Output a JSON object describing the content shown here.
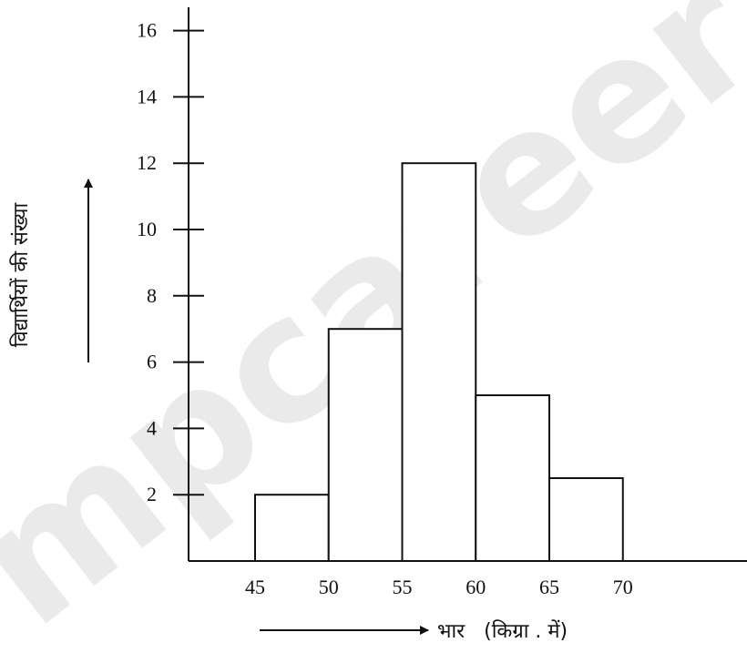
{
  "watermark_text": "mpcareer",
  "chart_data": {
    "type": "histogram",
    "bins": [
      [
        45,
        50
      ],
      [
        50,
        55
      ],
      [
        55,
        60
      ],
      [
        60,
        65
      ],
      [
        65,
        70
      ]
    ],
    "values": [
      2,
      7,
      12,
      5,
      2.5
    ],
    "xticks": [
      45,
      50,
      55,
      60,
      65,
      70
    ],
    "yticks": [
      2,
      4,
      6,
      8,
      10,
      12,
      14,
      16
    ],
    "xlabel": "भार   (किग्रा . में)",
    "ylabel": "विद्यार्थियों की संख्या",
    "title": "",
    "ylim": [
      0,
      17
    ],
    "grid": false,
    "legend": "none"
  }
}
